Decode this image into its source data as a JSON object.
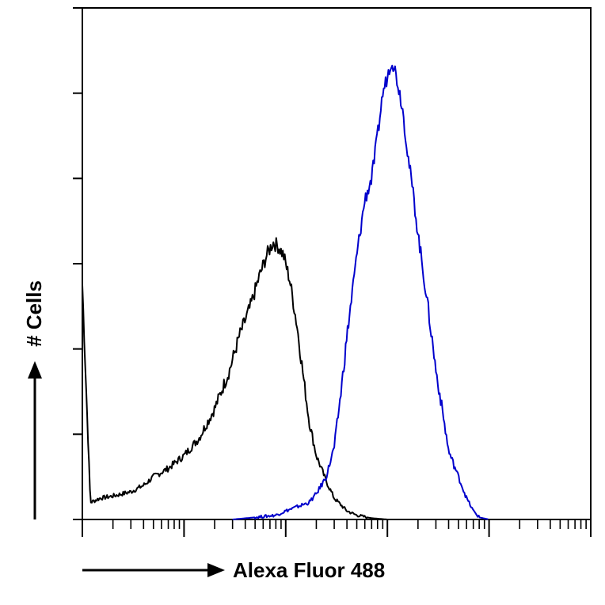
{
  "chart_data": {
    "type": "line",
    "title": "",
    "xlabel": "Alexa Fluor 488",
    "ylabel": "# Cells",
    "x_scale": "log",
    "xlim": [
      1,
      100000
    ],
    "ylim": [
      0,
      120
    ],
    "grid": false,
    "legend": "none",
    "series": [
      {
        "color": "#000000",
        "x": [
          1,
          1.2,
          1.5,
          2,
          3,
          4,
          5,
          7,
          10,
          14,
          20,
          28,
          35,
          45,
          55,
          65,
          75,
          85,
          95,
          110,
          130,
          150,
          170,
          200,
          250,
          300,
          400,
          500,
          700,
          1000
        ],
        "y": [
          55,
          4,
          5,
          5.5,
          6.5,
          8,
          10,
          12,
          15,
          19,
          26,
          35,
          43,
          50,
          57,
          62,
          65,
          64,
          62,
          56,
          45,
          33,
          23,
          15,
          9,
          5,
          2,
          1,
          0.3,
          0
        ]
      },
      {
        "color": "#0000cc",
        "x": [
          30,
          50,
          80,
          100,
          130,
          170,
          200,
          250,
          300,
          350,
          400,
          500,
          600,
          700,
          800,
          900,
          1000,
          1100,
          1200,
          1400,
          1600,
          1800,
          2000,
          2500,
          3000,
          3500,
          4000,
          5000,
          6000,
          7000,
          8000,
          10000
        ],
        "y": [
          0,
          0.5,
          1,
          2,
          3,
          4,
          6,
          10,
          17,
          30,
          43,
          62,
          75,
          80,
          90,
          100,
          104,
          108,
          105,
          97,
          85,
          76,
          67,
          50,
          35,
          25,
          16,
          10,
          5,
          2,
          0.5,
          0
        ]
      }
    ]
  }
}
